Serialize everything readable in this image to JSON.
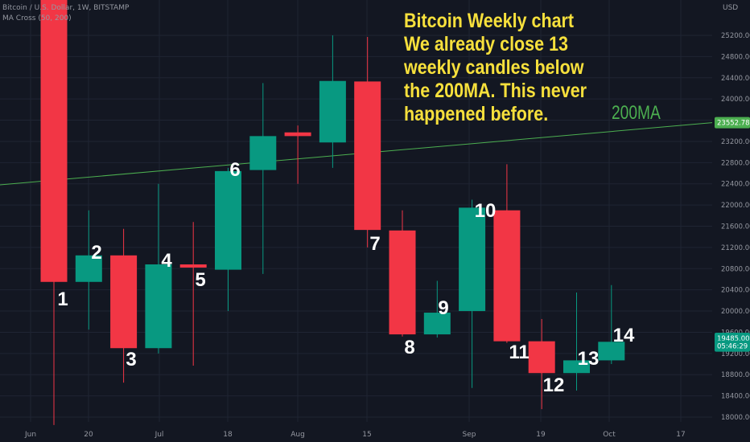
{
  "legend": {
    "symbol_line": "Bitcoin / U.S. Dollar, 1W, BITSTAMP",
    "indicator_line": "MA Cross (50, 200)"
  },
  "callout": {
    "lines": [
      "Bitcoin Weekly chart",
      "We already close 13",
      "weekly candles below",
      "the 200MA. This never",
      "happened before."
    ]
  },
  "ma_label": "200MA",
  "currency": "USD",
  "colors": {
    "background": "#131722",
    "up": "#089981",
    "down": "#f23645",
    "ma": "#4caf50",
    "callout": "#f7e03c",
    "grid": "#1f2433"
  },
  "chart_data": {
    "type": "candlestick",
    "y_axis": {
      "min": 17900,
      "max": 25500,
      "ticks": [
        18000,
        18400,
        18800,
        19200,
        19600,
        20000,
        20400,
        20800,
        21200,
        21600,
        22000,
        22400,
        22800,
        23200,
        23600,
        24000,
        24400,
        24800,
        25200
      ]
    },
    "x_axis": {
      "labels": [
        "Jun",
        "20",
        "Jul",
        "18",
        "Aug",
        "15",
        "Sep",
        "19",
        "Oct",
        "17"
      ]
    },
    "candles": [
      {
        "label": "1",
        "open": 26600,
        "close": 20550,
        "high": 26800,
        "low": 17850
      },
      {
        "label": "2",
        "open": 20550,
        "close": 21050,
        "high": 21900,
        "low": 19650
      },
      {
        "label": "3",
        "open": 21050,
        "close": 19300,
        "high": 21550,
        "low": 18650
      },
      {
        "label": "4",
        "open": 19300,
        "close": 20880,
        "high": 22400,
        "low": 19200
      },
      {
        "label": "5",
        "open": 20880,
        "close": 20820,
        "high": 21680,
        "low": 18970
      },
      {
        "label": "6",
        "open": 20780,
        "close": 22640,
        "high": 22700,
        "low": 20000
      },
      {
        "label": "7",
        "open": 22660,
        "close": 23300,
        "high": 24300,
        "low": 20700
      },
      {
        "label": "",
        "open": 23370,
        "close": 23300,
        "high": 23500,
        "low": 22400
      },
      {
        "label": "",
        "open": 23180,
        "close": 24340,
        "high": 25200,
        "low": 22700
      },
      {
        "label": "7",
        "open": 24330,
        "close": 21530,
        "high": 25170,
        "low": 21200
      },
      {
        "label": "8",
        "open": 21520,
        "close": 19560,
        "high": 21900,
        "low": 19520
      },
      {
        "label": "9",
        "open": 19560,
        "close": 19970,
        "high": 20570,
        "low": 19500
      },
      {
        "label": "10",
        "open": 20000,
        "close": 21950,
        "high": 22100,
        "low": 18550
      },
      {
        "label": "11",
        "open": 21900,
        "close": 19430,
        "high": 22770,
        "low": 19400
      },
      {
        "label": "12",
        "open": 19430,
        "close": 18830,
        "high": 19850,
        "low": 18150
      },
      {
        "label": "13",
        "open": 18830,
        "close": 19070,
        "high": 20350,
        "low": 18500
      },
      {
        "label": "14",
        "open": 19070,
        "close": 19420,
        "high": 20490,
        "low": 19000
      }
    ],
    "ma_200": {
      "start": 22380,
      "end": 23552.78
    },
    "price_tags": [
      {
        "value": "23552.78",
        "y": 23552.78,
        "color": "#4caf50"
      },
      {
        "value": "19485.00",
        "y": 19485,
        "color": "#089981"
      },
      {
        "value": "05:46:29",
        "y": 19340,
        "color": "#089981"
      }
    ]
  }
}
